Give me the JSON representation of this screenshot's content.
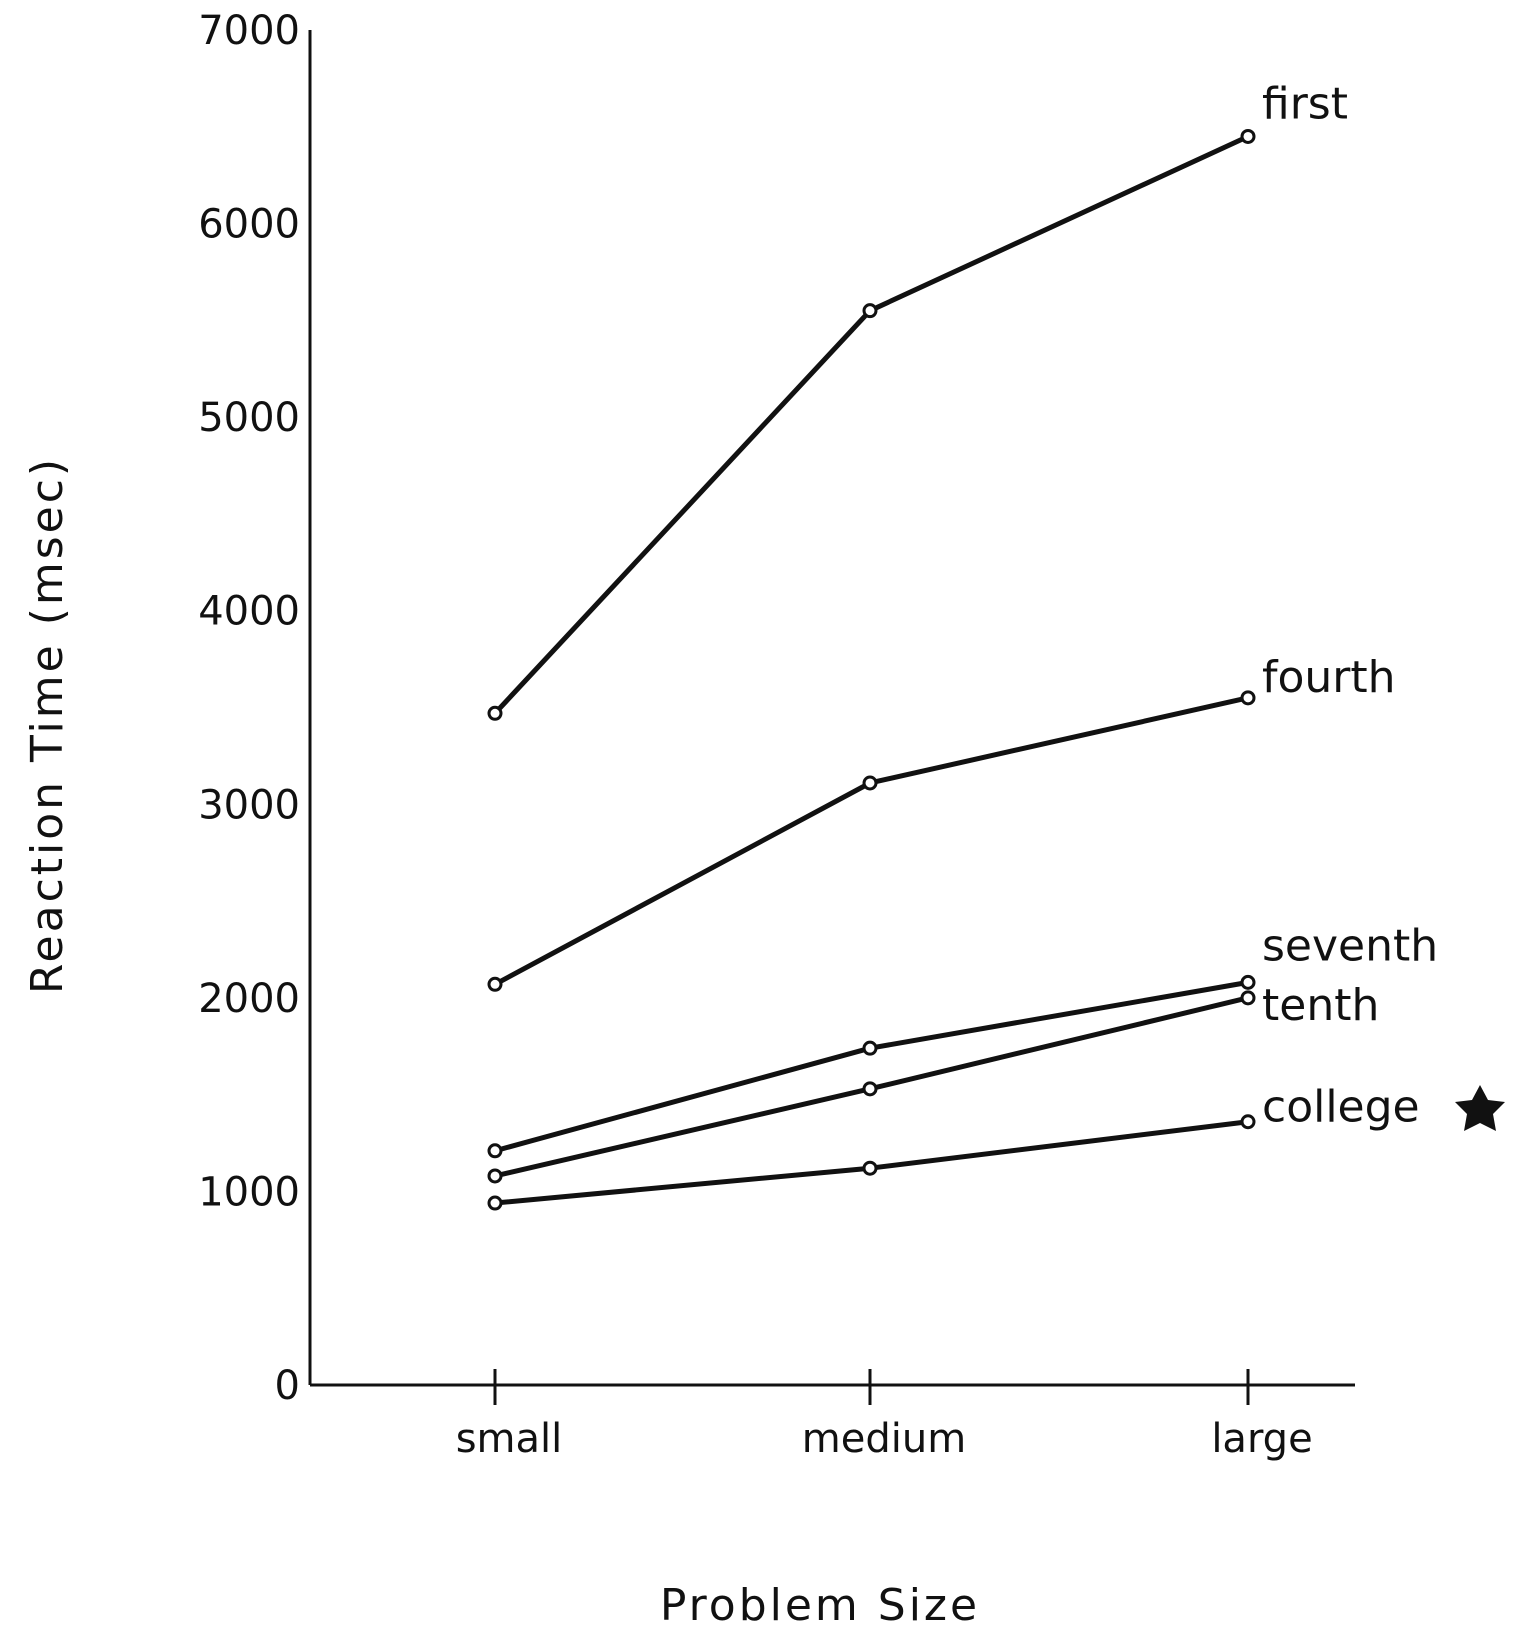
{
  "chart_data": {
    "type": "line",
    "categories": [
      "small",
      "medium",
      "large"
    ],
    "xlabel": "Problem Size",
    "ylabel": "Reaction Time (msec)",
    "ylim": [
      0,
      7000
    ],
    "yticks": [
      0,
      1000,
      2000,
      3000,
      4000,
      5000,
      6000,
      7000
    ],
    "grid": false,
    "legend": "none",
    "series": [
      {
        "name": "first",
        "values": [
          3470,
          5550,
          6450
        ]
      },
      {
        "name": "fourth",
        "values": [
          2070,
          3110,
          3550
        ]
      },
      {
        "name": "seventh",
        "values": [
          1210,
          1740,
          2080
        ]
      },
      {
        "name": "tenth",
        "values": [
          1080,
          1530,
          2000
        ]
      },
      {
        "name": "college",
        "values": [
          940,
          1120,
          1360
        ]
      }
    ]
  }
}
